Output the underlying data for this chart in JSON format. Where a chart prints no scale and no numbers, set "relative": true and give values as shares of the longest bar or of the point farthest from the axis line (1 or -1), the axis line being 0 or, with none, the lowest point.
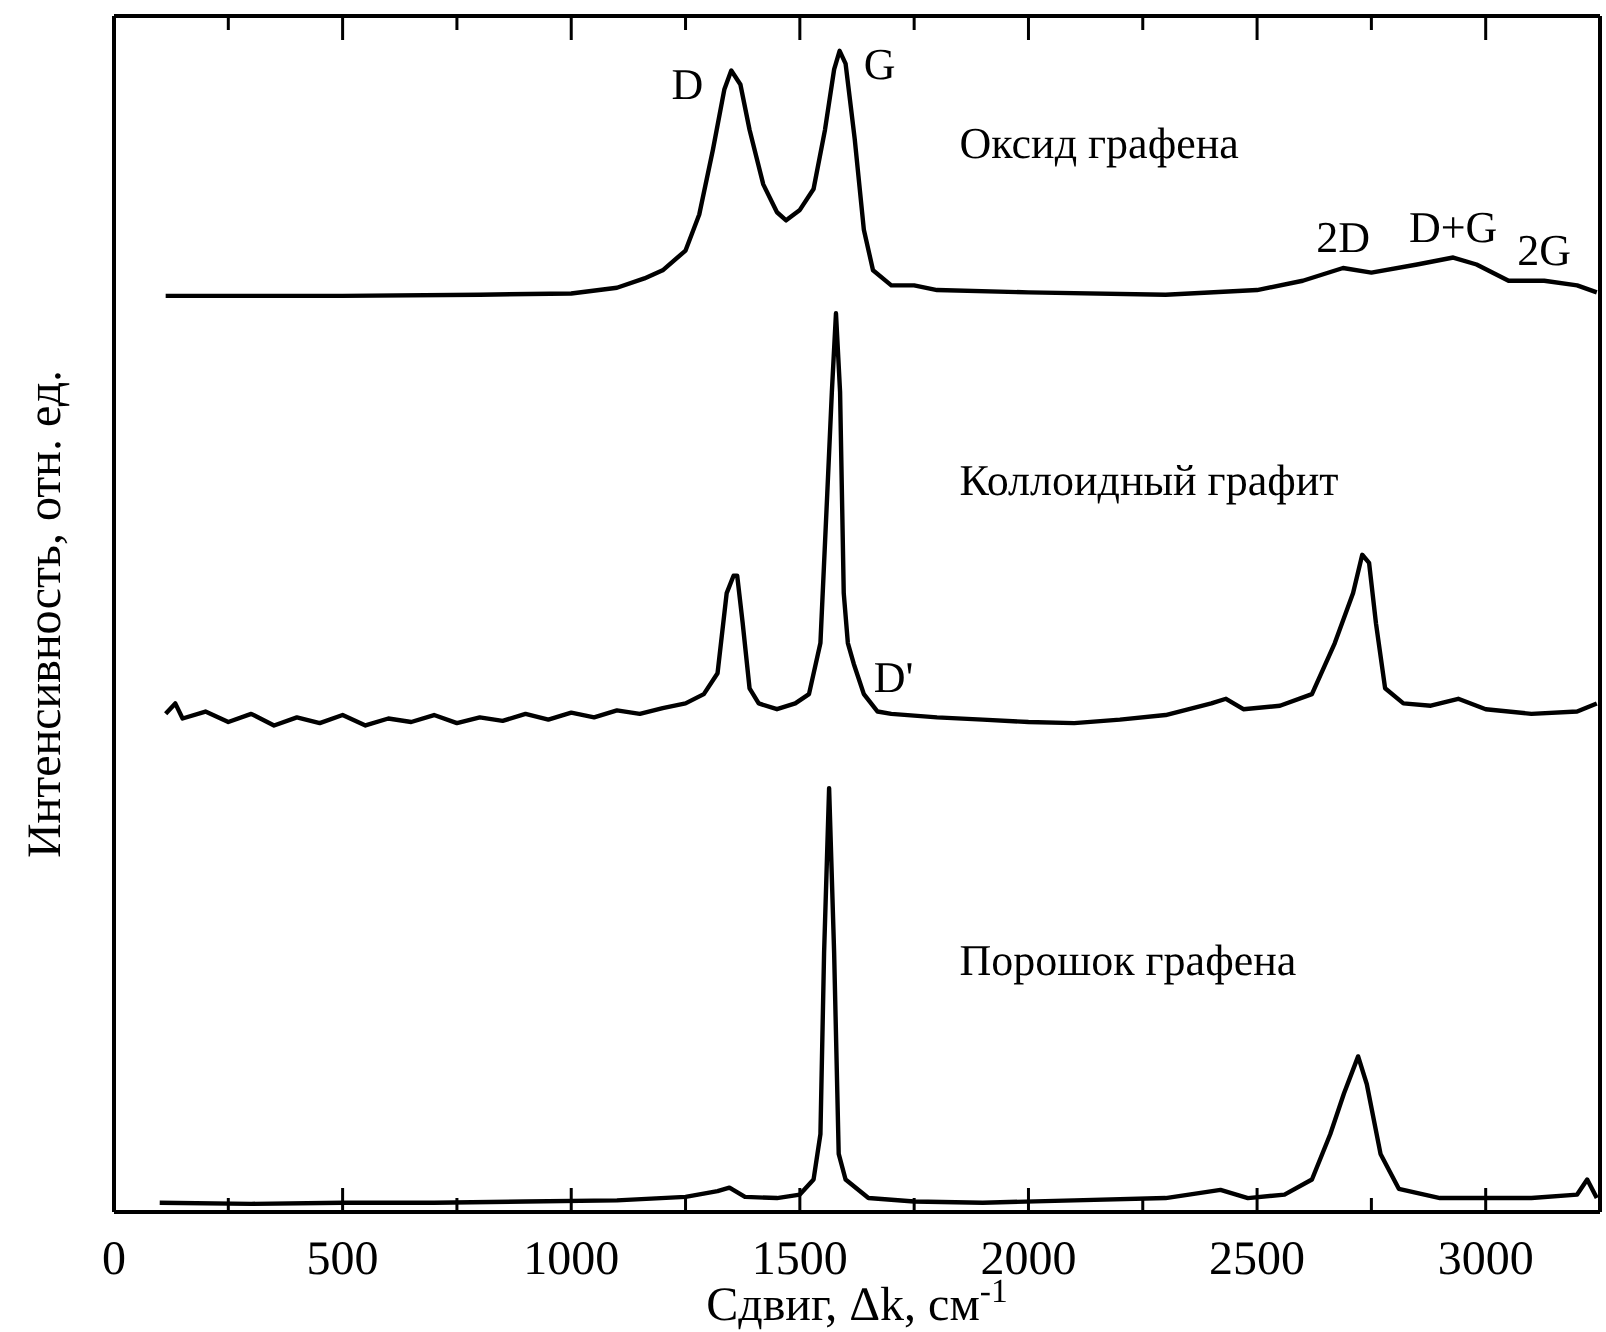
{
  "chart_data": {
    "type": "line",
    "relative": true,
    "xlabel": "Сдвиг, Δk, см$^{-1}$",
    "ylabel": "Интенсивность, отн. ед.",
    "xlim": [
      0,
      3250
    ],
    "xticks": [
      0,
      {
        "value": 250,
        "label": null
      },
      500,
      {
        "value": 750,
        "label": null
      },
      1000,
      {
        "value": 1250,
        "label": null
      },
      1500,
      {
        "value": 1750,
        "label": null
      },
      2000,
      {
        "value": 2250,
        "label": null
      },
      2500,
      {
        "value": 2750,
        "label": null
      },
      3000
    ],
    "line_style": "solid",
    "annotations": [
      {
        "text": "D",
        "x": 1350,
        "y": 0.983
      },
      {
        "text": "G",
        "x": 1587,
        "y": 1.0
      },
      {
        "text": "2D",
        "x": 2688,
        "y": 0.813
      },
      {
        "text": "D+G",
        "x": 2929,
        "y": 0.822
      },
      {
        "text": "2G",
        "x": 3128,
        "y": 0.802
      },
      {
        "text": "D'",
        "x": 1618,
        "y": 0.472
      }
    ],
    "series": [
      {
        "name": "Оксид графена",
        "color": "#000000",
        "x": [
          113,
          300,
          500,
          800,
          1000,
          1100,
          1160,
          1200,
          1250,
          1280,
          1310,
          1335,
          1350,
          1370,
          1390,
          1420,
          1450,
          1470,
          1500,
          1530,
          1555,
          1575,
          1587,
          1600,
          1620,
          1640,
          1660,
          1700,
          1750,
          1800,
          2000,
          2300,
          2500,
          2600,
          2688,
          2750,
          2850,
          2929,
          2980,
          3050,
          3128,
          3200,
          3243
        ],
        "values": [
          0.789,
          0.789,
          0.789,
          0.79,
          0.791,
          0.796,
          0.804,
          0.811,
          0.828,
          0.859,
          0.915,
          0.967,
          0.983,
          0.971,
          0.932,
          0.885,
          0.861,
          0.854,
          0.863,
          0.881,
          0.932,
          0.984,
          1.0,
          0.989,
          0.924,
          0.846,
          0.811,
          0.798,
          0.798,
          0.794,
          0.792,
          0.79,
          0.794,
          0.802,
          0.813,
          0.809,
          0.816,
          0.822,
          0.816,
          0.802,
          0.802,
          0.798,
          0.792
        ]
      },
      {
        "name": "Коллоидный графит",
        "color": "#000000",
        "x": [
          113,
          134,
          150,
          200,
          250,
          300,
          350,
          400,
          450,
          500,
          550,
          600,
          650,
          700,
          750,
          800,
          850,
          900,
          950,
          1000,
          1050,
          1100,
          1150,
          1200,
          1250,
          1290,
          1320,
          1340,
          1355,
          1363,
          1375,
          1390,
          1410,
          1450,
          1490,
          1520,
          1545,
          1560,
          1570,
          1579,
          1588,
          1596,
          1605,
          1618,
          1640,
          1670,
          1700,
          1800,
          1900,
          2000,
          2100,
          2200,
          2300,
          2400,
          2432,
          2470,
          2550,
          2620,
          2670,
          2710,
          2730,
          2745,
          2760,
          2780,
          2820,
          2880,
          2940,
          3000,
          3100,
          3200,
          3243
        ],
        "values": [
          0.429,
          0.438,
          0.425,
          0.431,
          0.422,
          0.429,
          0.419,
          0.426,
          0.421,
          0.428,
          0.419,
          0.425,
          0.422,
          0.428,
          0.421,
          0.426,
          0.423,
          0.429,
          0.424,
          0.43,
          0.426,
          0.432,
          0.429,
          0.434,
          0.438,
          0.446,
          0.464,
          0.533,
          0.548,
          0.548,
          0.507,
          0.451,
          0.438,
          0.433,
          0.438,
          0.446,
          0.49,
          0.619,
          0.706,
          0.774,
          0.706,
          0.533,
          0.49,
          0.472,
          0.446,
          0.431,
          0.429,
          0.426,
          0.424,
          0.422,
          0.421,
          0.424,
          0.428,
          0.438,
          0.442,
          0.433,
          0.436,
          0.446,
          0.49,
          0.533,
          0.566,
          0.559,
          0.507,
          0.451,
          0.438,
          0.436,
          0.442,
          0.433,
          0.429,
          0.431,
          0.438
        ]
      },
      {
        "name": "Порошок графена",
        "color": "#000000",
        "x": [
          100,
          300,
          500,
          700,
          900,
          1100,
          1250,
          1320,
          1346,
          1380,
          1450,
          1500,
          1530,
          1545,
          1553,
          1564,
          1575,
          1585,
          1600,
          1650,
          1750,
          1900,
          2100,
          2300,
          2420,
          2480,
          2560,
          2620,
          2660,
          2690,
          2721,
          2740,
          2770,
          2810,
          2900,
          3100,
          3200,
          3222,
          3243
        ],
        "values": [
          0.008,
          0.007,
          0.008,
          0.008,
          0.009,
          0.01,
          0.013,
          0.018,
          0.021,
          0.013,
          0.012,
          0.015,
          0.028,
          0.067,
          0.223,
          0.365,
          0.223,
          0.05,
          0.028,
          0.012,
          0.009,
          0.008,
          0.01,
          0.012,
          0.019,
          0.012,
          0.015,
          0.028,
          0.067,
          0.102,
          0.134,
          0.11,
          0.05,
          0.02,
          0.012,
          0.012,
          0.015,
          0.028,
          0.012
        ]
      }
    ]
  }
}
